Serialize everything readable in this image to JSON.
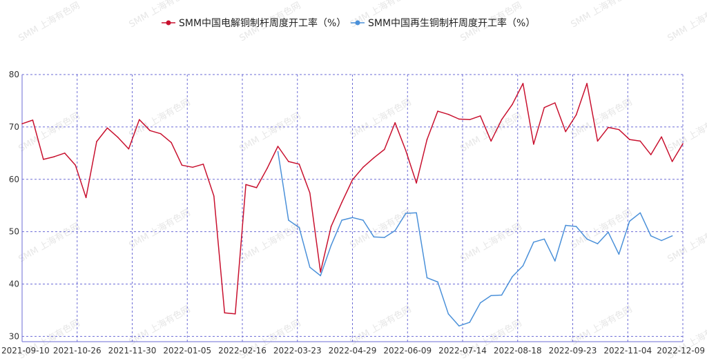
{
  "chart_data": {
    "type": "line",
    "title": "",
    "xlabel": "",
    "ylabel": "",
    "ylim": [
      29,
      80
    ],
    "yticks": [
      30,
      40,
      50,
      60,
      70,
      80
    ],
    "grid": true,
    "legend_position": "top-center",
    "x_tick_labels": [
      "2021-09-10",
      "2021-10-26",
      "2021-11-30",
      "2022-01-05",
      "2022-02-16",
      "2022-03-23",
      "2022-04-29",
      "2022-06-09",
      "2022-07-14",
      "2022-08-18",
      "2022-09-23",
      "2022-11-04",
      "2022-12-09"
    ],
    "series": [
      {
        "name": "SMM中国电解铜制杆周度开工率（%）",
        "color": "#c8102e",
        "values": [
          70.6,
          71.3,
          63.8,
          64.3,
          65.0,
          62.7,
          56.5,
          67.2,
          69.8,
          68.0,
          65.8,
          71.4,
          69.3,
          68.7,
          67.0,
          62.7,
          62.3,
          62.9,
          56.8,
          34.5,
          34.3,
          59.0,
          58.4,
          62.1,
          66.3,
          63.4,
          62.9,
          57.4,
          42.3,
          51.0,
          55.6,
          59.9,
          62.3,
          64.1,
          65.7,
          70.8,
          65.5,
          59.3,
          67.6,
          73.0,
          72.4,
          71.5,
          71.4,
          72.1,
          67.3,
          71.4,
          74.3,
          78.3,
          66.7,
          73.7,
          74.6,
          69.1,
          72.3,
          78.3,
          67.3,
          69.9,
          69.5,
          67.6,
          67.3,
          64.7,
          68.1,
          63.4,
          66.8
        ]
      },
      {
        "name": "SMM中国再生铜制杆周度开工率（%）",
        "color": "#4a90d9",
        "start_index": 24,
        "values": [
          65.3,
          52.2,
          50.8,
          43.2,
          41.6,
          47.4,
          52.2,
          52.7,
          52.2,
          49.0,
          48.9,
          50.2,
          53.5,
          53.6,
          41.2,
          40.4,
          34.3,
          32.0,
          32.7,
          36.4,
          37.8,
          37.9,
          41.4,
          43.5,
          48.0,
          48.6,
          44.4,
          51.2,
          51.0,
          48.6,
          47.7,
          49.9,
          45.7,
          52.0,
          53.6,
          49.2,
          48.3,
          49.2
        ]
      }
    ]
  },
  "legend": {
    "items": [
      {
        "label": "SMM中国电解铜制杆周度开工率（%）",
        "color": "#c8102e"
      },
      {
        "label": "SMM中国再生铜制杆周度开工率（%）",
        "color": "#4a90d9"
      }
    ]
  },
  "watermark": "SMM 上海有色网"
}
